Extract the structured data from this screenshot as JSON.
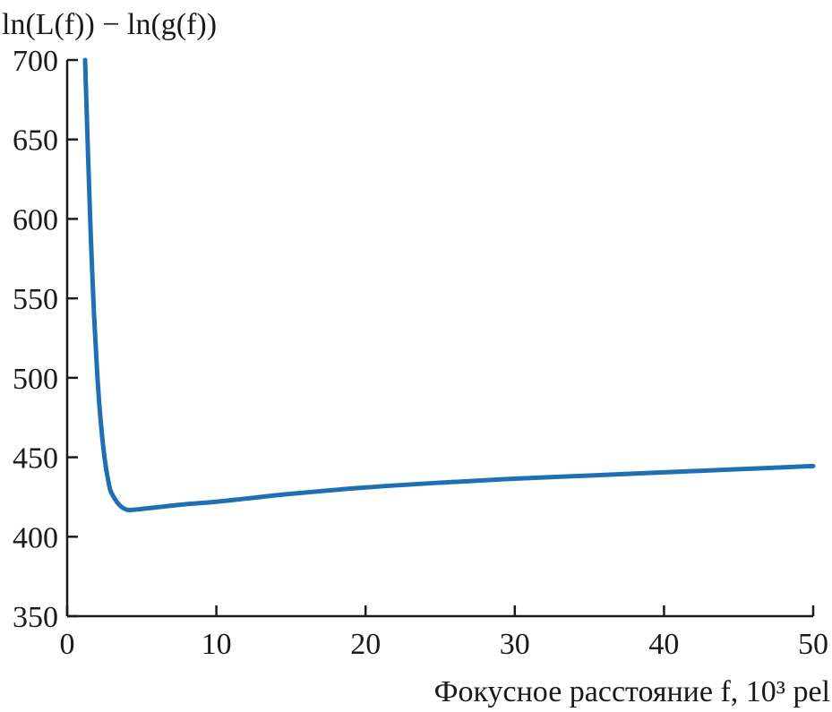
{
  "chart_data": {
    "type": "line",
    "title": "",
    "ylabel": "ln(L(f)) − ln(g(f))",
    "xlabel": "Фокусное расстояние f, 10³ pel",
    "xlim": [
      0,
      50
    ],
    "ylim": [
      350,
      700
    ],
    "xticks": [
      "0",
      "10",
      "20",
      "30",
      "40",
      "50"
    ],
    "yticks": [
      "350",
      "400",
      "450",
      "500",
      "550",
      "600",
      "650",
      "700"
    ],
    "grid": false,
    "legend": "none",
    "series": [
      {
        "color": "#1f6fb5",
        "x": [
          1.2,
          1.3,
          1.4,
          1.5,
          1.6,
          1.8,
          2.0,
          2.2,
          2.5,
          2.8,
          3.0,
          3.5,
          4.0,
          4.5,
          5.0,
          6.0,
          8.0,
          10,
          12,
          15,
          20,
          25,
          30,
          35,
          40,
          45,
          50
        ],
        "y": [
          700,
          670,
          640,
          612,
          585,
          540,
          505,
          478,
          450,
          433,
          427,
          420,
          417,
          417,
          417.5,
          418.5,
          420.5,
          422,
          424,
          427,
          431,
          434,
          436.5,
          438.5,
          440.5,
          442.5,
          444.5
        ]
      }
    ]
  }
}
